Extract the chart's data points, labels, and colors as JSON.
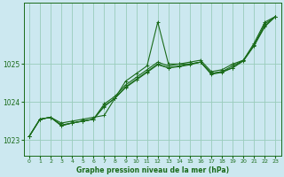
{
  "title": "Graphe pression niveau de la mer (hPa)",
  "bg_color": "#cce8f0",
  "grid_color": "#99ccbb",
  "line_color": "#1a6b1a",
  "marker_color": "#1a6b1a",
  "xlim": [
    -0.5,
    23.5
  ],
  "ylim": [
    1022.6,
    1026.6
  ],
  "yticks": [
    1023,
    1024,
    1025
  ],
  "xticks": [
    0,
    1,
    2,
    3,
    4,
    5,
    6,
    7,
    8,
    9,
    10,
    11,
    12,
    13,
    14,
    15,
    16,
    17,
    18,
    19,
    20,
    21,
    22,
    23
  ],
  "series": [
    [
      1023.1,
      1023.55,
      1023.6,
      1023.45,
      1023.5,
      1023.55,
      1023.6,
      1023.65,
      1024.1,
      1024.55,
      1024.75,
      1024.95,
      1026.1,
      1025.0,
      1025.0,
      1025.05,
      1025.1,
      1024.8,
      1024.85,
      1025.0,
      1025.1,
      1025.55,
      1026.1,
      1026.25
    ],
    [
      1023.1,
      1023.55,
      1023.6,
      1023.4,
      1023.45,
      1023.5,
      1023.55,
      1023.95,
      1024.15,
      1024.45,
      1024.65,
      1024.85,
      1025.05,
      1024.95,
      1025.0,
      1025.0,
      1025.05,
      1024.75,
      1024.8,
      1024.95,
      1025.1,
      1025.5,
      1026.05,
      1026.25
    ],
    [
      1023.1,
      1023.55,
      1023.6,
      1023.38,
      1023.45,
      1023.5,
      1023.55,
      1023.9,
      1024.1,
      1024.4,
      1024.6,
      1024.8,
      1025.0,
      1024.9,
      1024.95,
      1025.0,
      1025.05,
      1024.75,
      1024.8,
      1024.9,
      1025.1,
      1025.5,
      1026.0,
      1026.25
    ],
    [
      1023.1,
      1023.55,
      1023.6,
      1023.38,
      1023.45,
      1023.5,
      1023.55,
      1023.88,
      1024.1,
      1024.38,
      1024.58,
      1024.78,
      1024.98,
      1024.9,
      1024.93,
      1024.98,
      1025.05,
      1024.73,
      1024.78,
      1024.9,
      1025.08,
      1025.48,
      1025.98,
      1026.25
    ]
  ]
}
